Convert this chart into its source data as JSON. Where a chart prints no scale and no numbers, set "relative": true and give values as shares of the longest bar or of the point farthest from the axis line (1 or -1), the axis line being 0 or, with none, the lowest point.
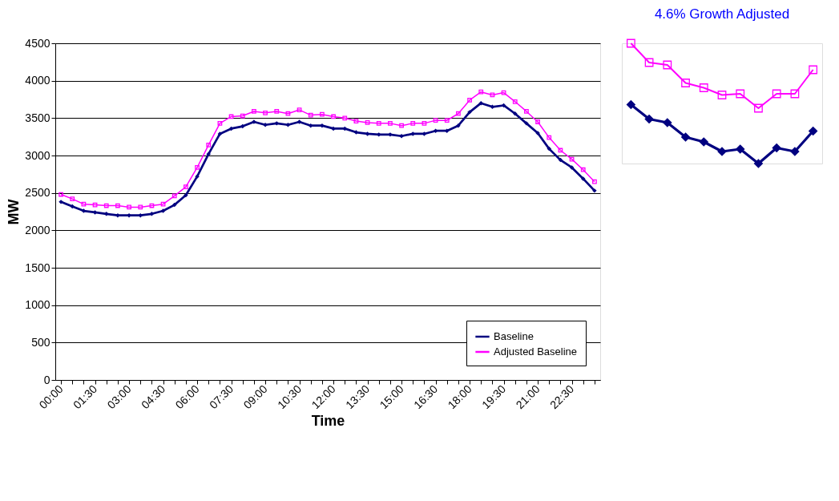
{
  "chart_data": [
    {
      "type": "line",
      "xlabel": "Time",
      "ylabel": "MW",
      "categories": [
        "00:00",
        null,
        null,
        "01:30",
        null,
        null,
        "03:00",
        null,
        null,
        "04:30",
        null,
        null,
        "06:00",
        null,
        null,
        "07:30",
        null,
        null,
        "09:00",
        null,
        null,
        "10:30",
        null,
        null,
        "12:00",
        null,
        null,
        "13:30",
        null,
        null,
        "15:00",
        null,
        null,
        "16:30",
        null,
        null,
        "18:00",
        null,
        null,
        "19:30",
        null,
        null,
        "21:00",
        null,
        null,
        "22:30",
        null,
        null
      ],
      "series": [
        {
          "name": "Baseline",
          "color": "#000080",
          "marker": "diamond",
          "values": [
            2380,
            2320,
            2260,
            2240,
            2220,
            2200,
            2200,
            2200,
            2220,
            2260,
            2340,
            2470,
            2720,
            3020,
            3290,
            3360,
            3390,
            3450,
            3410,
            3430,
            3410,
            3450,
            3400,
            3400,
            3360,
            3360,
            3310,
            3290,
            3280,
            3280,
            3260,
            3290,
            3290,
            3330,
            3330,
            3400,
            3580,
            3700,
            3650,
            3670,
            3560,
            3430,
            3300,
            3090,
            2940,
            2840,
            2690,
            2530
          ]
        },
        {
          "name": "Adjusted Baseline",
          "color": "#ff00ff",
          "marker": "square",
          "values": [
            2480,
            2420,
            2350,
            2340,
            2330,
            2330,
            2310,
            2310,
            2330,
            2350,
            2460,
            2580,
            2840,
            3140,
            3430,
            3520,
            3530,
            3590,
            3570,
            3590,
            3560,
            3610,
            3540,
            3550,
            3520,
            3500,
            3460,
            3440,
            3430,
            3430,
            3400,
            3430,
            3430,
            3470,
            3470,
            3560,
            3740,
            3850,
            3810,
            3840,
            3720,
            3590,
            3450,
            3240,
            3070,
            2950,
            2810,
            2650
          ]
        }
      ],
      "ylim": [
        0,
        4500
      ],
      "yticks": [
        0,
        500,
        1000,
        1500,
        2000,
        2500,
        3000,
        3500,
        4000,
        4500
      ],
      "grid": "y",
      "legend": "bottom right"
    },
    {
      "type": "line",
      "relative": true,
      "annotations": [
        "4.6% Growth Adjusted"
      ],
      "categories": [
        null,
        null,
        null,
        null,
        null,
        null,
        null,
        null,
        null,
        null,
        null
      ],
      "series": [
        {
          "color": "#000080",
          "marker": "diamond",
          "values": [
            0.49,
            0.37,
            0.34,
            0.22,
            0.18,
            0.1,
            0.12,
            0,
            0.13,
            0.1,
            0.27
          ]
        },
        {
          "color": "#ff00ff",
          "marker": "square",
          "values": [
            1,
            0.84,
            0.82,
            0.67,
            0.63,
            0.57,
            0.58,
            0.46,
            0.58,
            0.58,
            0.78
          ]
        }
      ]
    }
  ]
}
